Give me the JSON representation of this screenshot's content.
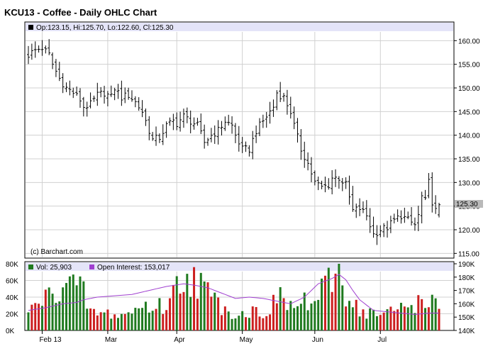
{
  "title": "KCU13 - Coffee - Daily OHLC Chart",
  "colors": {
    "header_bg": "#e4e4f8",
    "grid": "#d0d0d0",
    "up_volume": "#cc1f1f",
    "down_volume": "#1f7a1f",
    "open_interest": "#a040d0",
    "price_bar": "#000000",
    "last_price_bg": "#b9b9b9"
  },
  "watermark": "(c) Barchart.com",
  "price_panel": {
    "legend": "Op:123.15, Hi:125.70, Lo:122.60, Cl:125.30",
    "last_price_label": "125.30",
    "y_ticks": [
      "160.00",
      "155.00",
      "150.00",
      "145.00",
      "140.00",
      "135.00",
      "130.00",
      "125.00",
      "120.00",
      "115.00"
    ]
  },
  "volume_panel": {
    "legend_volume": "Vol: 25,903",
    "legend_oi": "Open Interest: 153,017",
    "left_ticks": [
      "80K",
      "60K",
      "40K",
      "20K",
      "0K"
    ],
    "right_ticks": [
      "190K",
      "180K",
      "170K",
      "160K",
      "150K",
      "140K"
    ]
  },
  "x_ticks": [
    "Feb 13",
    "Mar",
    "Apr",
    "May",
    "Jun",
    "Jul"
  ],
  "chart_data": {
    "type": "ohlc",
    "title": "KCU13 - Coffee - Daily OHLC Chart",
    "ylim": [
      114,
      162
    ],
    "x_index_range": [
      0,
      115
    ],
    "x_tick_positions": [
      4,
      23,
      43,
      62,
      83,
      102
    ],
    "price_anchors": [
      [
        0,
        157
      ],
      [
        2,
        158
      ],
      [
        4,
        158.5
      ],
      [
        6,
        157
      ],
      [
        7,
        155
      ],
      [
        9,
        152
      ],
      [
        11,
        150
      ],
      [
        13,
        149
      ],
      [
        15,
        147.5
      ],
      [
        16,
        146
      ],
      [
        18,
        146.5
      ],
      [
        20,
        148.5
      ],
      [
        22,
        149
      ],
      [
        24,
        148
      ],
      [
        25,
        150
      ],
      [
        27,
        148
      ],
      [
        29,
        148.5
      ],
      [
        31,
        147
      ],
      [
        33,
        145
      ],
      [
        35,
        141
      ],
      [
        36,
        139
      ],
      [
        38,
        139.5
      ],
      [
        40,
        142
      ],
      [
        42,
        143
      ],
      [
        43,
        142.5
      ],
      [
        45,
        144
      ],
      [
        47,
        143
      ],
      [
        49,
        142
      ],
      [
        51,
        138.5
      ],
      [
        53,
        140
      ],
      [
        55,
        141
      ],
      [
        57,
        143
      ],
      [
        59,
        142
      ],
      [
        60,
        140
      ],
      [
        62,
        137
      ],
      [
        64,
        137
      ],
      [
        66,
        141
      ],
      [
        68,
        143
      ],
      [
        70,
        145
      ],
      [
        71,
        146
      ],
      [
        72,
        149
      ],
      [
        74,
        148
      ],
      [
        76,
        145
      ],
      [
        77,
        142
      ],
      [
        79,
        137
      ],
      [
        81,
        134
      ],
      [
        83,
        130
      ],
      [
        85,
        129
      ],
      [
        87,
        129.5
      ],
      [
        88,
        131
      ],
      [
        90,
        131
      ],
      [
        92,
        129.5
      ],
      [
        94,
        124
      ],
      [
        96,
        124.5
      ],
      [
        98,
        123
      ],
      [
        100,
        119
      ],
      [
        102,
        120
      ],
      [
        104,
        120.5
      ],
      [
        106,
        122
      ],
      [
        108,
        123
      ],
      [
        110,
        122
      ],
      [
        112,
        121
      ],
      [
        113,
        123
      ],
      [
        114,
        127
      ],
      [
        115,
        126
      ],
      [
        116,
        130
      ],
      [
        117,
        126
      ],
      [
        118,
        124
      ],
      [
        119,
        125.3
      ]
    ],
    "ohlc_last": {
      "open": 123.15,
      "high": 125.7,
      "low": 122.6,
      "close": 125.3
    },
    "volume_ylim": [
      0,
      80000
    ],
    "volume_anchors": [
      [
        0,
        20000
      ],
      [
        3,
        35000
      ],
      [
        6,
        40000
      ],
      [
        8,
        50000
      ],
      [
        9,
        55000
      ],
      [
        10,
        60000
      ],
      [
        12,
        58000
      ],
      [
        14,
        50000
      ],
      [
        16,
        45000
      ],
      [
        18,
        22000
      ],
      [
        21,
        20000
      ],
      [
        24,
        20000
      ],
      [
        27,
        18000
      ],
      [
        30,
        22000
      ],
      [
        33,
        30000
      ],
      [
        36,
        28000
      ],
      [
        40,
        30000
      ],
      [
        42,
        45000
      ],
      [
        44,
        60000
      ],
      [
        46,
        70000
      ],
      [
        48,
        62000
      ],
      [
        50,
        55000
      ],
      [
        52,
        45000
      ],
      [
        54,
        35000
      ],
      [
        56,
        30000
      ],
      [
        58,
        25000
      ],
      [
        60,
        20000
      ],
      [
        62,
        20000
      ],
      [
        64,
        22000
      ],
      [
        66,
        24000
      ],
      [
        68,
        22000
      ],
      [
        70,
        25000
      ],
      [
        72,
        40000
      ],
      [
        74,
        35000
      ],
      [
        76,
        30000
      ],
      [
        78,
        28000
      ],
      [
        80,
        35000
      ],
      [
        82,
        30000
      ],
      [
        84,
        40000
      ],
      [
        86,
        50000
      ],
      [
        88,
        60000
      ],
      [
        89,
        70000
      ],
      [
        90,
        80000
      ],
      [
        91,
        60000
      ],
      [
        92,
        45000
      ],
      [
        94,
        35000
      ],
      [
        96,
        25000
      ],
      [
        98,
        20000
      ],
      [
        100,
        22000
      ],
      [
        102,
        18000
      ],
      [
        104,
        20000
      ],
      [
        106,
        24000
      ],
      [
        108,
        28000
      ],
      [
        110,
        30000
      ],
      [
        112,
        33000
      ],
      [
        114,
        35000
      ],
      [
        116,
        40000
      ],
      [
        118,
        30000
      ],
      [
        119,
        25903
      ]
    ],
    "oi_ylim": [
      140000,
      190000
    ],
    "oi_anchors": [
      [
        0,
        155000
      ],
      [
        5,
        157000
      ],
      [
        10,
        160000
      ],
      [
        14,
        161000
      ],
      [
        16,
        163000
      ],
      [
        20,
        165000
      ],
      [
        25,
        166000
      ],
      [
        30,
        167000
      ],
      [
        35,
        170000
      ],
      [
        40,
        173000
      ],
      [
        45,
        175000
      ],
      [
        48,
        174000
      ],
      [
        52,
        172000
      ],
      [
        56,
        168000
      ],
      [
        60,
        164000
      ],
      [
        64,
        165000
      ],
      [
        68,
        164000
      ],
      [
        72,
        162000
      ],
      [
        76,
        160000
      ],
      [
        80,
        165000
      ],
      [
        84,
        175000
      ],
      [
        88,
        179000
      ],
      [
        90,
        182000
      ],
      [
        92,
        178000
      ],
      [
        94,
        170000
      ],
      [
        96,
        163000
      ],
      [
        100,
        155000
      ],
      [
        104,
        154000
      ],
      [
        108,
        153000
      ],
      [
        112,
        152000
      ],
      [
        116,
        153000
      ],
      [
        119,
        153017
      ]
    ]
  }
}
